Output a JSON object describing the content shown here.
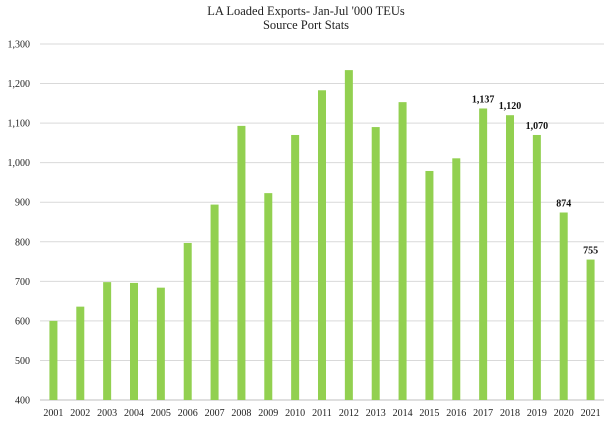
{
  "chart_data": {
    "type": "bar",
    "title": "LA Loaded Exports- Jan-Jul '000 TEUs",
    "subtitle": "Source Port Stats",
    "xlabel": "",
    "ylabel": "",
    "ylim": [
      400,
      1300
    ],
    "yticks": [
      400,
      500,
      600,
      700,
      800,
      900,
      1000,
      1100,
      1200,
      1300
    ],
    "ytick_labels": [
      "400",
      "500",
      "600",
      "700",
      "800",
      "900",
      "1,000",
      "1,100",
      "1,200",
      "1,300"
    ],
    "grid": true,
    "bar_color": "#92d050",
    "categories": [
      "2001",
      "2002",
      "2003",
      "2004",
      "2005",
      "2006",
      "2007",
      "2008",
      "2009",
      "2010",
      "2011",
      "2012",
      "2013",
      "2014",
      "2015",
      "2016",
      "2017",
      "2018",
      "2019",
      "2020",
      "2021"
    ],
    "values": [
      600,
      636,
      698,
      696,
      684,
      797,
      894,
      1093,
      923,
      1070,
      1183,
      1234,
      1090,
      1153,
      979,
      1011,
      1137,
      1120,
      1070,
      874,
      755
    ],
    "data_labels": [
      {
        "index": 16,
        "text": "1,137"
      },
      {
        "index": 17,
        "text": "1,120"
      },
      {
        "index": 18,
        "text": "1,070"
      },
      {
        "index": 19,
        "text": "874"
      },
      {
        "index": 20,
        "text": "755"
      }
    ]
  }
}
